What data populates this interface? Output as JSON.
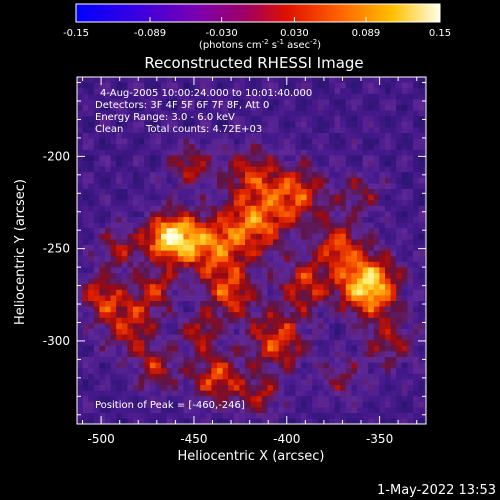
{
  "colorbar": {
    "ticks": [
      "-0.15",
      "-0.089",
      "-0.030",
      "0.030",
      "0.089",
      "0.15"
    ],
    "tick_values": [
      -0.15,
      -0.089,
      -0.03,
      0.03,
      0.089,
      0.15
    ],
    "range": [
      -0.15,
      0.15
    ],
    "unit_main": "(photons cm",
    "unit_exp1": "-2",
    "unit_mid": " s",
    "unit_exp2": "-1",
    "unit_tail": " asec",
    "unit_exp3": "-2",
    "unit_close": ")",
    "colors": [
      "#0000ff",
      "#5a00d0",
      "#8a00a0",
      "#c00040",
      "#ff2000",
      "#ff8000",
      "#ffd000",
      "#ffffe0"
    ]
  },
  "chart_data": {
    "type": "heatmap",
    "title": "Reconstructed RHESSI Image",
    "xlabel": "Heliocentric X (arcsec)",
    "ylabel": "Heliocentric Y (arcsec)",
    "xlim": [
      -513,
      -325
    ],
    "ylim": [
      -345,
      -157
    ],
    "xticks": [
      -500,
      -450,
      -400,
      -350
    ],
    "xtick_labels": [
      "-500",
      "-450",
      "-400",
      "-350"
    ],
    "yticks": [
      -200,
      -250,
      -300
    ],
    "ytick_labels": [
      "-200",
      "-250",
      "-300"
    ],
    "peak": [
      -460,
      -246
    ],
    "info_lines": [
      "4-Aug-2005 10:00:24.000 to 10:01:40.000",
      "Detectors: 3F 4F 5F 6F 7F 8F, Att 0",
      "Energy Range: 3.0 - 6.0 keV"
    ],
    "method": "Clean",
    "total_counts": "Total counts: 4.72E+03",
    "peak_label": "Position of Peak = [-460,-246]"
  },
  "footer": {
    "timestamp": "1-May-2022 13:53"
  }
}
